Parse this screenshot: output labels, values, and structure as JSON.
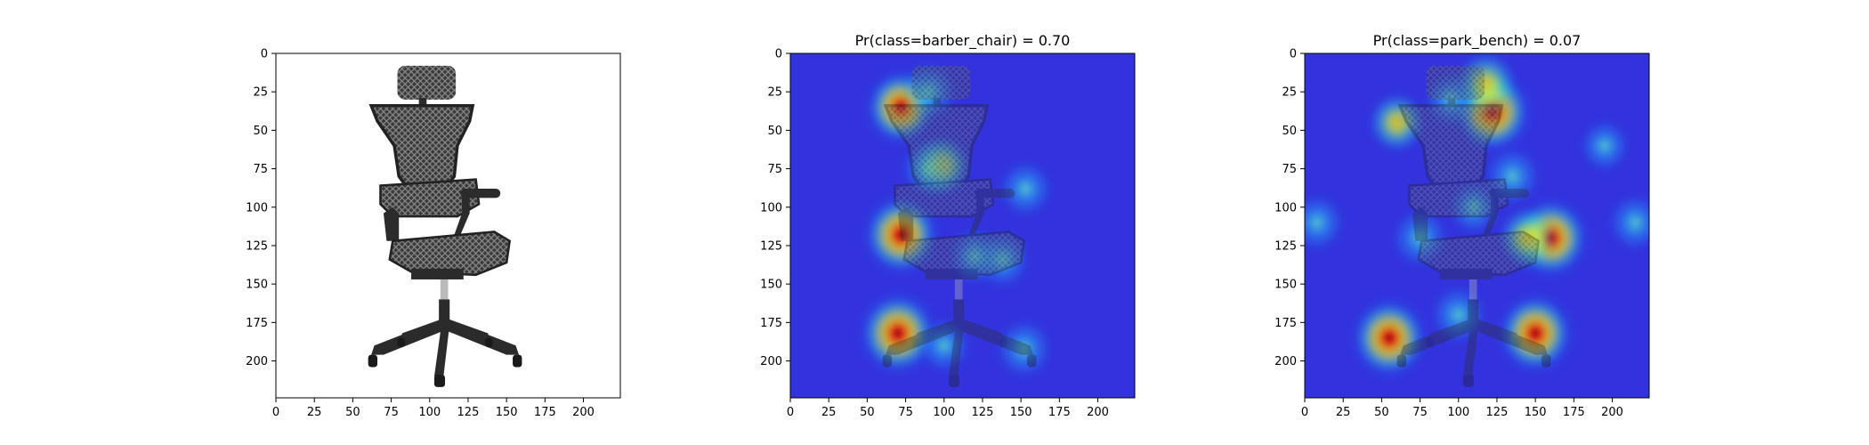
{
  "chart_data": [
    {
      "type": "image",
      "title": "",
      "content": "office chair photo",
      "xticks": [
        "0",
        "25",
        "50",
        "75",
        "100",
        "125",
        "150",
        "175",
        "200"
      ],
      "yticks": [
        "0",
        "25",
        "50",
        "75",
        "100",
        "125",
        "150",
        "175",
        "200"
      ],
      "xlim": [
        0,
        224
      ],
      "ylim": [
        224,
        0
      ]
    },
    {
      "type": "heatmap",
      "title": "Pr(class=barber_chair) =  0.70",
      "class": "barber_chair",
      "probability": 0.7,
      "colormap": "jet",
      "xticks": [
        "0",
        "25",
        "50",
        "75",
        "100",
        "125",
        "150",
        "175",
        "200"
      ],
      "yticks": [
        "0",
        "25",
        "50",
        "75",
        "100",
        "125",
        "150",
        "175",
        "200"
      ],
      "xlim": [
        0,
        224
      ],
      "ylim": [
        224,
        0
      ],
      "hotspots": [
        {
          "x": 72,
          "y": 35,
          "intensity": 0.85
        },
        {
          "x": 90,
          "y": 25,
          "intensity": 0.45
        },
        {
          "x": 98,
          "y": 73,
          "intensity": 0.55
        },
        {
          "x": 90,
          "y": 75,
          "intensity": 0.45
        },
        {
          "x": 72,
          "y": 118,
          "intensity": 0.95
        },
        {
          "x": 120,
          "y": 132,
          "intensity": 0.4
        },
        {
          "x": 138,
          "y": 134,
          "intensity": 0.42
        },
        {
          "x": 153,
          "y": 88,
          "intensity": 0.4
        },
        {
          "x": 70,
          "y": 182,
          "intensity": 1.0
        },
        {
          "x": 100,
          "y": 190,
          "intensity": 0.35
        },
        {
          "x": 152,
          "y": 192,
          "intensity": 0.45
        }
      ]
    },
    {
      "type": "heatmap",
      "title": "Pr(class=park_bench) =  0.07",
      "class": "park_bench",
      "probability": 0.07,
      "colormap": "jet",
      "xticks": [
        "0",
        "25",
        "50",
        "75",
        "100",
        "125",
        "150",
        "175",
        "200"
      ],
      "yticks": [
        "0",
        "25",
        "50",
        "75",
        "100",
        "125",
        "150",
        "175",
        "200"
      ],
      "xlim": [
        0,
        224
      ],
      "ylim": [
        224,
        0
      ],
      "hotspots": [
        {
          "x": 122,
          "y": 38,
          "intensity": 1.0
        },
        {
          "x": 118,
          "y": 20,
          "intensity": 0.6
        },
        {
          "x": 60,
          "y": 45,
          "intensity": 0.5
        },
        {
          "x": 95,
          "y": 30,
          "intensity": 0.4
        },
        {
          "x": 135,
          "y": 80,
          "intensity": 0.45
        },
        {
          "x": 160,
          "y": 120,
          "intensity": 0.95
        },
        {
          "x": 145,
          "y": 120,
          "intensity": 0.55
        },
        {
          "x": 75,
          "y": 120,
          "intensity": 0.45
        },
        {
          "x": 110,
          "y": 100,
          "intensity": 0.35
        },
        {
          "x": 55,
          "y": 185,
          "intensity": 0.95
        },
        {
          "x": 150,
          "y": 182,
          "intensity": 0.95
        },
        {
          "x": 100,
          "y": 170,
          "intensity": 0.45
        },
        {
          "x": 8,
          "y": 110,
          "intensity": 0.4
        },
        {
          "x": 215,
          "y": 110,
          "intensity": 0.4
        },
        {
          "x": 195,
          "y": 60,
          "intensity": 0.3
        }
      ]
    }
  ],
  "colors": {
    "cold": "#3333dd",
    "chair": "#2b2b2b",
    "chair_mesh": "#5a5a5a"
  }
}
